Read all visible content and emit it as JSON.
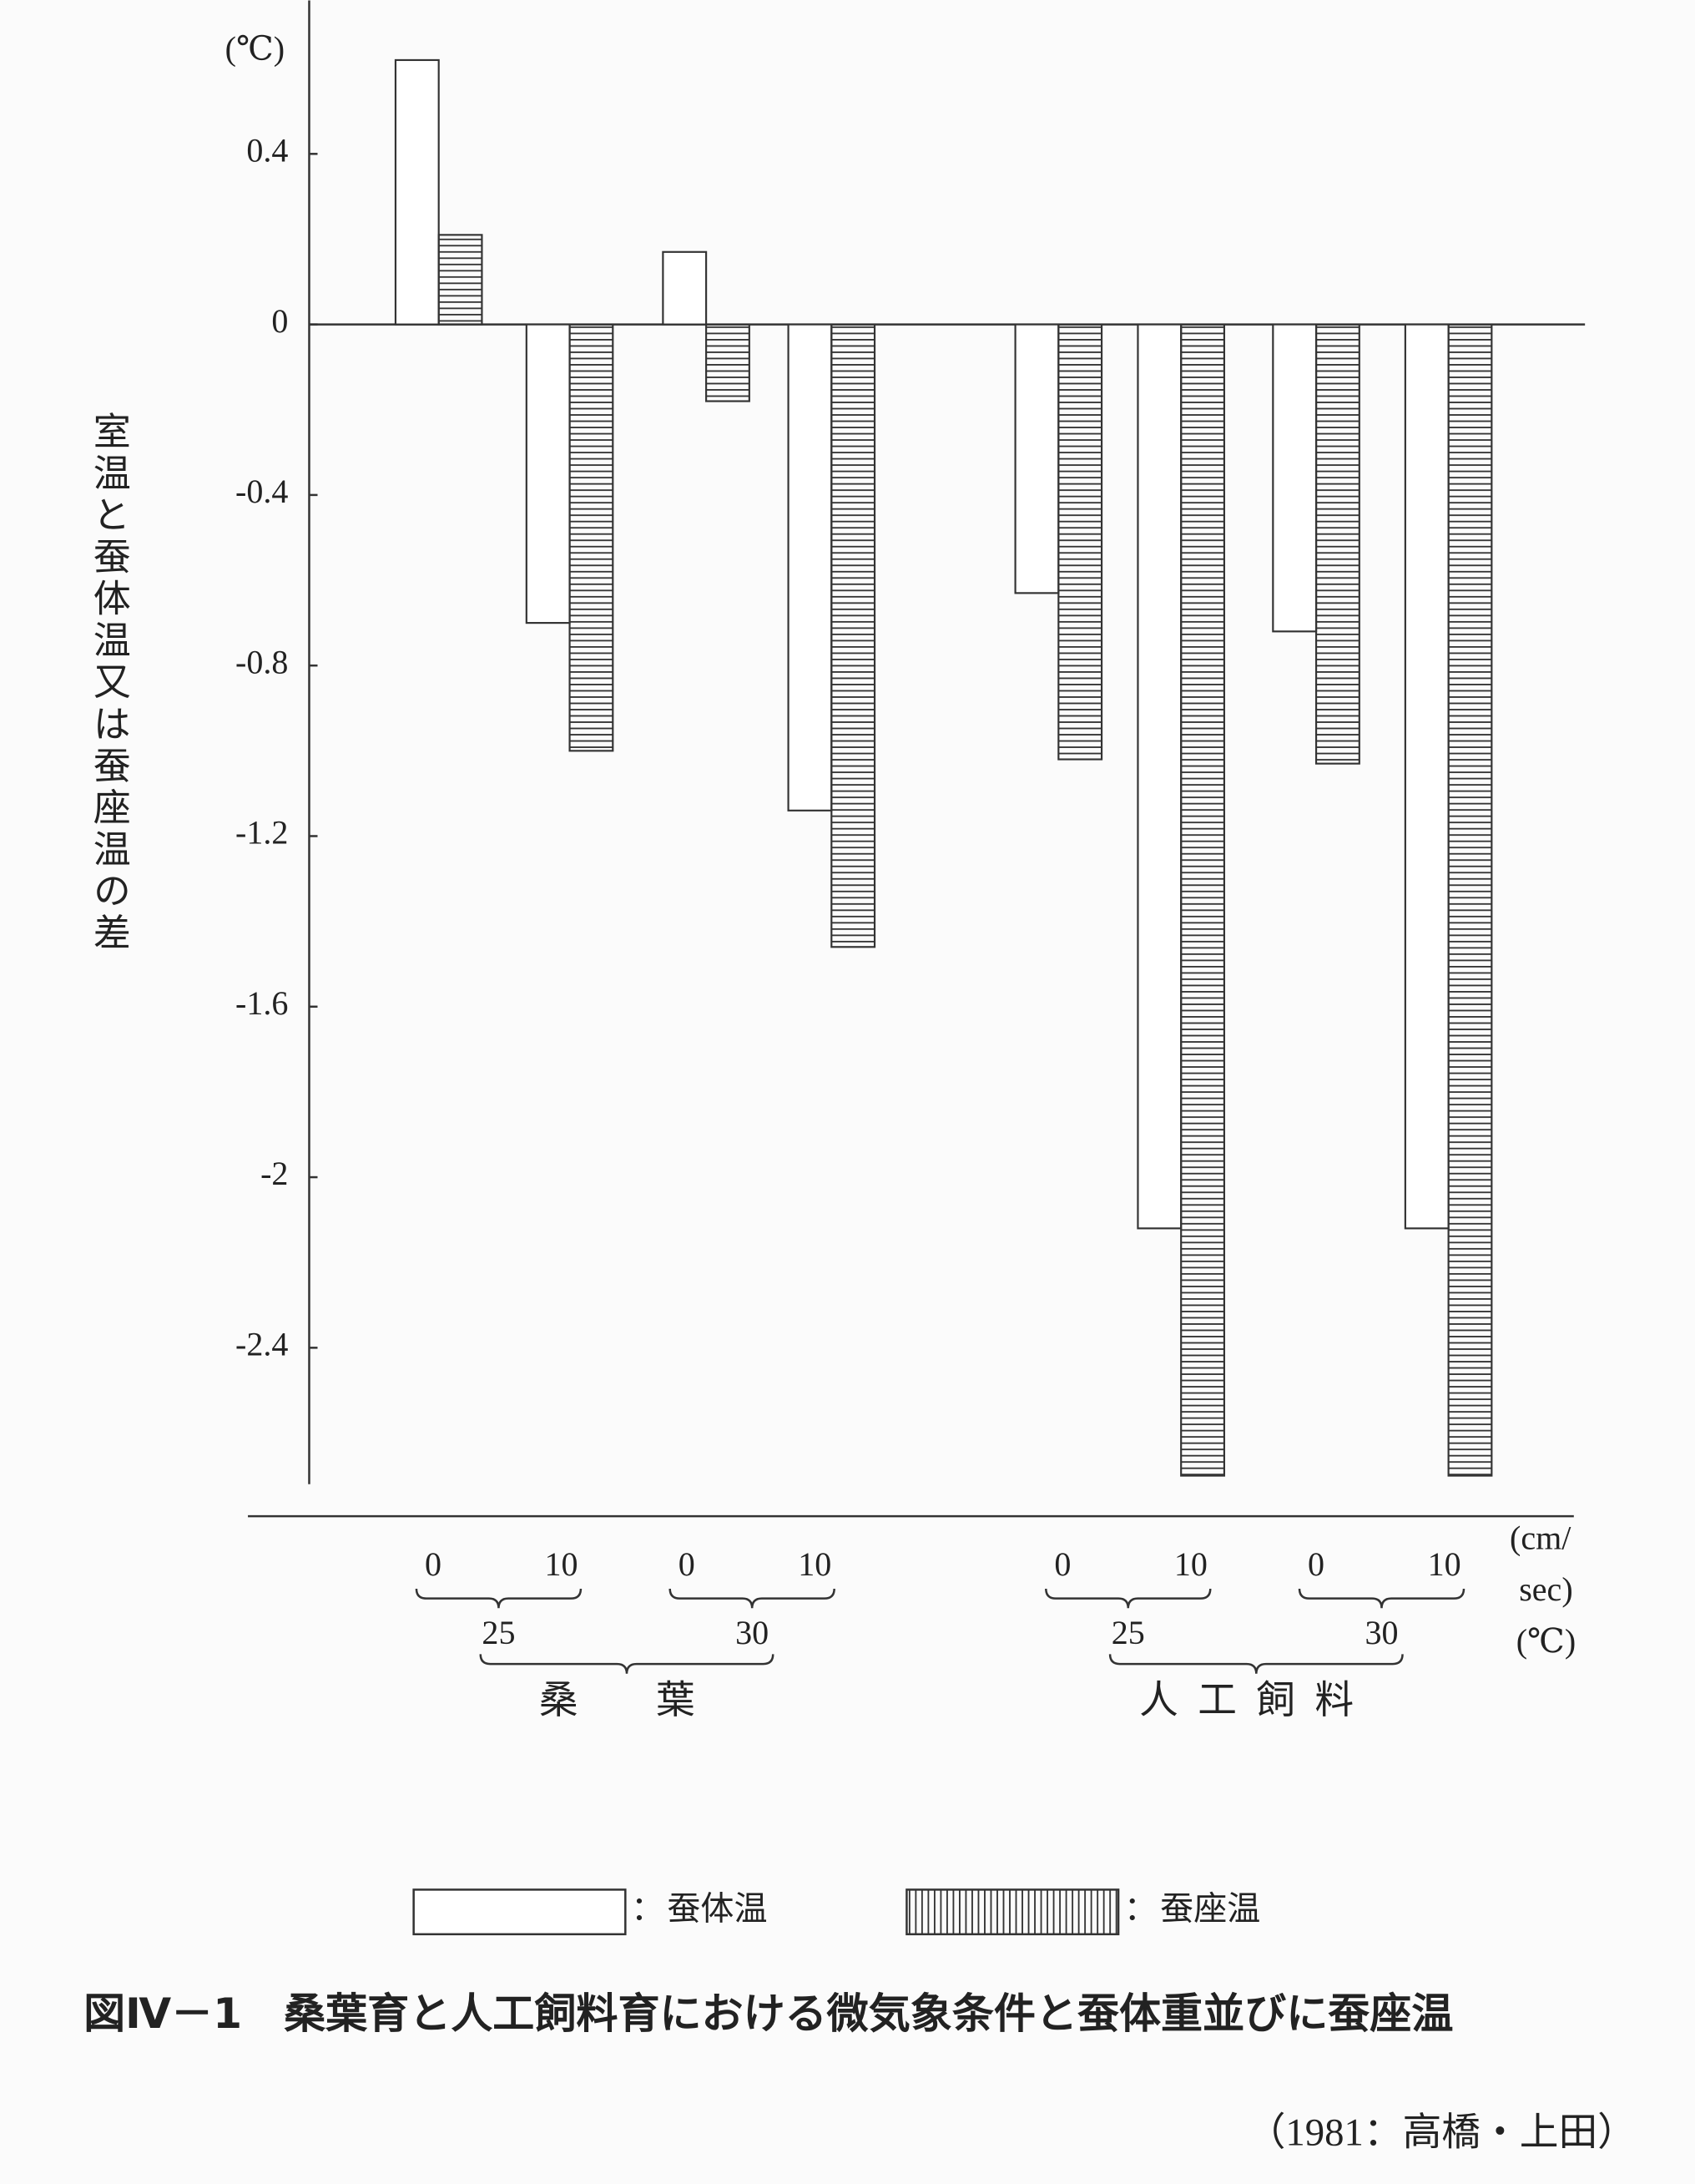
{
  "chart_data": {
    "type": "bar",
    "y_unit": "(℃)",
    "y_label": "室温と蚕体温又は蚕座温の差",
    "categories": [
      "0",
      "10",
      "0",
      "10",
      "0",
      "10",
      "0",
      "10"
    ],
    "category_groups": [
      "25",
      "30",
      "25",
      "30"
    ],
    "category_supergroups": [
      "桑　葉",
      "人工飼料"
    ],
    "x_unit": [
      "(cm/",
      "sec)"
    ],
    "group_unit": "(℃)",
    "series": [
      {
        "name": "蚕体温",
        "color": "#ffffff",
        "values": [
          0.62,
          -0.7,
          0.17,
          -1.14,
          -0.63,
          -2.12,
          -0.72,
          -2.12
        ]
      },
      {
        "name": "蚕座温",
        "color": "#ffffff",
        "hatch": "horizontal",
        "values": [
          0.21,
          -1.0,
          -0.18,
          -1.46,
          -1.02,
          -2.7,
          -1.03,
          -2.7
        ]
      }
    ],
    "legend_separator": "：",
    "ylim": [
      -2.72,
      0.76
    ],
    "yticks": [
      0.4,
      0,
      -0.4,
      -0.8,
      -1.2,
      -1.6,
      -2.0,
      -2.4
    ],
    "caption": "図Ⅳ－1　桑葉育と人工飼料育における微気象条件と蚕体重並びに蚕座温",
    "source": "（1981：高橋・上田）"
  }
}
